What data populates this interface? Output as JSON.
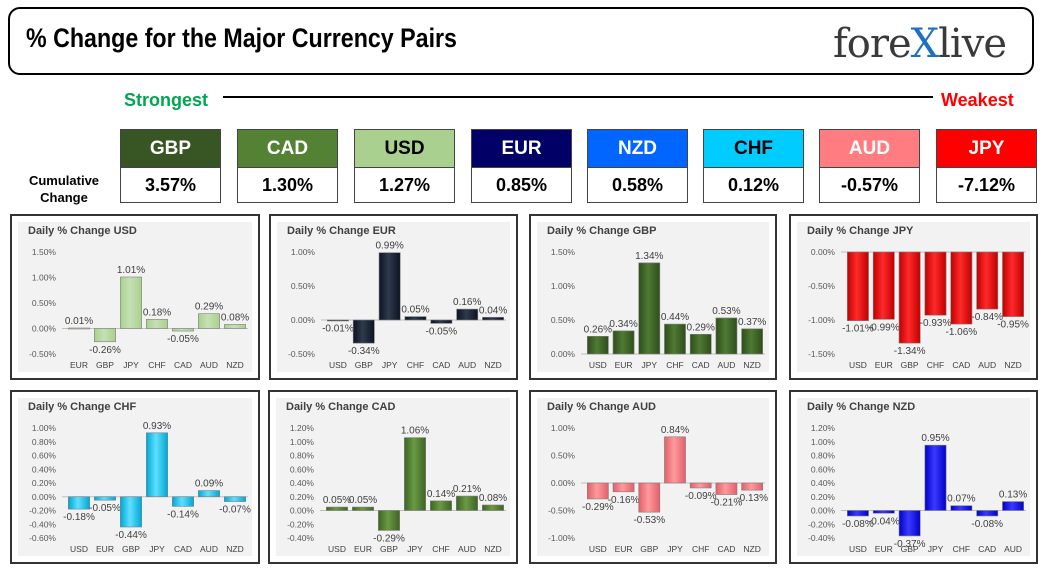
{
  "header": {
    "title": "% Change for the Major Currency Pairs",
    "logo": {
      "text_a": "fore",
      "text_x": "X",
      "text_b": "live"
    }
  },
  "ranking": {
    "strongest_label": "Strongest",
    "weakest_label": "Weakest",
    "cumulative_label_line1": "Cumulative",
    "cumulative_label_line2": "Change",
    "currencies": [
      {
        "code": "GBP",
        "value": "3.57%",
        "color": "#375623",
        "text_color": "#ffffff"
      },
      {
        "code": "CAD",
        "value": "1.30%",
        "color": "#548235",
        "text_color": "#ffffff"
      },
      {
        "code": "USD",
        "value": "1.27%",
        "color": "#a9d08e",
        "text_color": "#000000"
      },
      {
        "code": "EUR",
        "value": "0.85%",
        "color": "#000066",
        "text_color": "#ffffff"
      },
      {
        "code": "NZD",
        "value": "0.58%",
        "color": "#0066ff",
        "text_color": "#ffffff"
      },
      {
        "code": "CHF",
        "value": "0.12%",
        "color": "#00ccff",
        "text_color": "#000000"
      },
      {
        "code": "AUD",
        "value": "-0.57%",
        "color": "#ff7c80",
        "text_color": "#ffffff"
      },
      {
        "code": "JPY",
        "value": "-7.12%",
        "color": "#ff0000",
        "text_color": "#ffffff"
      }
    ]
  },
  "chart_data": [
    {
      "type": "bar",
      "title": "Daily % Change USD",
      "categories": [
        "EUR",
        "GBP",
        "JPY",
        "CHF",
        "CAD",
        "AUD",
        "NZD"
      ],
      "values": [
        0.01,
        -0.26,
        1.01,
        0.18,
        -0.05,
        0.29,
        0.08
      ],
      "labels": [
        "0.01%",
        "-0.26%",
        "1.01%",
        "0.18%",
        "-0.05%",
        "0.29%",
        "0.08%"
      ],
      "yticks": [
        "1.50%",
        "1.00%",
        "0.50%",
        "0.00%",
        "-0.50%"
      ],
      "ylim": [
        -0.5,
        1.5
      ],
      "color_top": "#c6e0b4",
      "color_bottom": "#a9d08e"
    },
    {
      "type": "bar",
      "title": "Daily % Change EUR",
      "categories": [
        "USD",
        "GBP",
        "JPY",
        "CHF",
        "CAD",
        "AUD",
        "NZD"
      ],
      "values": [
        -0.01,
        -0.34,
        0.99,
        0.05,
        -0.05,
        0.16,
        0.04
      ],
      "labels": [
        "-0.01%",
        "-0.34%",
        "0.99%",
        "0.05%",
        "-0.05%",
        "0.16%",
        "0.04%"
      ],
      "yticks": [
        "1.00%",
        "0.50%",
        "0.00%",
        "-0.50%"
      ],
      "ylim": [
        -0.5,
        1.0
      ],
      "color_top": "#2e3a4e",
      "color_bottom": "#0d1320"
    },
    {
      "type": "bar",
      "title": "Daily % Change GBP",
      "categories": [
        "USD",
        "EUR",
        "JPY",
        "CHF",
        "CAD",
        "AUD",
        "NZD"
      ],
      "values": [
        0.26,
        0.34,
        1.34,
        0.44,
        0.29,
        0.53,
        0.37
      ],
      "labels": [
        "0.26%",
        "0.34%",
        "1.34%",
        "0.44%",
        "0.29%",
        "0.53%",
        "0.37%"
      ],
      "yticks": [
        "1.50%",
        "1.00%",
        "0.50%",
        "0.00%"
      ],
      "ylim": [
        0,
        1.5
      ],
      "color_top": "#4f7a33",
      "color_bottom": "#2f4d1c"
    },
    {
      "type": "bar",
      "title": "Daily % Change JPY",
      "categories": [
        "USD",
        "EUR",
        "GBP",
        "CHF",
        "CAD",
        "AUD",
        "NZD"
      ],
      "values": [
        -1.01,
        -0.99,
        -1.34,
        -0.93,
        -1.06,
        -0.84,
        -0.95
      ],
      "labels": [
        "-1.01%",
        "-0.99%",
        "-1.34%",
        "-0.93%",
        "-1.06%",
        "-0.84%",
        "-0.95%"
      ],
      "yticks": [
        "0.00%",
        "-0.50%",
        "-1.00%",
        "-1.50%"
      ],
      "ylim": [
        -1.5,
        0
      ],
      "color_top": "#ff2a2a",
      "color_bottom": "#c00000"
    },
    {
      "type": "bar",
      "title": "Daily % Change CHF",
      "categories": [
        "USD",
        "EUR",
        "GBP",
        "JPY",
        "CAD",
        "AUD",
        "NZD"
      ],
      "values": [
        -0.18,
        -0.05,
        -0.44,
        0.93,
        -0.14,
        0.09,
        -0.07
      ],
      "labels": [
        "-0.18%",
        "-0.05%",
        "-0.44%",
        "0.93%",
        "-0.14%",
        "0.09%",
        "-0.07%"
      ],
      "yticks": [
        "1.00%",
        "0.80%",
        "0.60%",
        "0.40%",
        "0.20%",
        "0.00%",
        "-0.20%",
        "-0.40%",
        "-0.60%"
      ],
      "ylim": [
        -0.6,
        1.0
      ],
      "color_top": "#5ee0ff",
      "color_bottom": "#00a7d6"
    },
    {
      "type": "bar",
      "title": "Daily % Change CAD",
      "categories": [
        "USD",
        "EUR",
        "GBP",
        "JPY",
        "CHF",
        "AUD",
        "NZD"
      ],
      "values": [
        0.05,
        0.05,
        -0.29,
        1.06,
        0.14,
        0.21,
        0.08
      ],
      "labels": [
        "0.05%",
        "0.05%",
        "-0.29%",
        "1.06%",
        "0.14%",
        "0.21%",
        "0.08%"
      ],
      "yticks": [
        "1.20%",
        "1.00%",
        "0.80%",
        "0.60%",
        "0.40%",
        "0.20%",
        "0.00%",
        "-0.20%",
        "-0.40%"
      ],
      "ylim": [
        -0.4,
        1.2
      ],
      "color_top": "#6a9a44",
      "color_bottom": "#3d6424"
    },
    {
      "type": "bar",
      "title": "Daily % Change AUD",
      "categories": [
        "USD",
        "EUR",
        "GBP",
        "JPY",
        "CHF",
        "CAD",
        "NZD"
      ],
      "values": [
        -0.29,
        -0.16,
        -0.53,
        0.84,
        -0.09,
        -0.21,
        -0.13
      ],
      "labels": [
        "-0.29%",
        "-0.16%",
        "-0.53%",
        "0.84%",
        "-0.09%",
        "-0.21%",
        "-0.13%"
      ],
      "yticks": [
        "1.00%",
        "0.50%",
        "0.00%",
        "-0.50%",
        "-1.00%"
      ],
      "ylim": [
        -1.0,
        1.0
      ],
      "color_top": "#ff9a9c",
      "color_bottom": "#e0606a"
    },
    {
      "type": "bar",
      "title": "Daily % Change NZD",
      "categories": [
        "USD",
        "EUR",
        "GBP",
        "JPY",
        "CHF",
        "CAD",
        "AUD"
      ],
      "values": [
        -0.08,
        -0.04,
        -0.37,
        0.95,
        0.07,
        -0.08,
        0.13
      ],
      "labels": [
        "-0.08%",
        "-0.04%",
        "-0.37%",
        "0.95%",
        "0.07%",
        "-0.08%",
        "0.13%"
      ],
      "yticks": [
        "1.20%",
        "1.00%",
        "0.80%",
        "0.60%",
        "0.40%",
        "0.20%",
        "0.00%",
        "-0.20%",
        "-0.40%"
      ],
      "ylim": [
        -0.4,
        1.2
      ],
      "color_top": "#3a3aff",
      "color_bottom": "#0000c8"
    }
  ]
}
